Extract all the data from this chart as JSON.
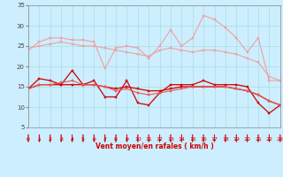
{
  "background_color": "#cceeff",
  "grid_color": "#aadddd",
  "xlabel": "Vent moyen/en rafales ( km/h )",
  "xlim": [
    0,
    23
  ],
  "ylim": [
    5,
    35
  ],
  "yticks": [
    5,
    10,
    15,
    20,
    25,
    30,
    35
  ],
  "xticks": [
    0,
    1,
    2,
    3,
    4,
    5,
    6,
    7,
    8,
    9,
    10,
    11,
    12,
    13,
    14,
    15,
    16,
    17,
    18,
    19,
    20,
    21,
    22,
    23
  ],
  "x": [
    0,
    1,
    2,
    3,
    4,
    5,
    6,
    7,
    8,
    9,
    10,
    11,
    12,
    13,
    14,
    15,
    16,
    17,
    18,
    19,
    20,
    21,
    22,
    23
  ],
  "line1_y": [
    24.0,
    26.0,
    27.0,
    27.0,
    26.5,
    26.5,
    26.0,
    19.5,
    24.5,
    25.0,
    24.5,
    22.0,
    25.0,
    29.0,
    25.0,
    27.0,
    32.5,
    31.5,
    29.5,
    27.0,
    23.5,
    27.0,
    16.5,
    16.5
  ],
  "line2_y": [
    24.5,
    25.0,
    25.5,
    26.0,
    25.5,
    25.0,
    25.0,
    24.5,
    24.0,
    23.5,
    23.0,
    22.5,
    24.0,
    24.5,
    24.0,
    23.5,
    24.0,
    24.0,
    23.5,
    23.0,
    22.0,
    21.0,
    17.5,
    16.5
  ],
  "line3_y": [
    14.5,
    17.0,
    16.5,
    15.5,
    19.0,
    15.5,
    16.5,
    12.5,
    12.5,
    16.5,
    11.0,
    10.5,
    13.5,
    15.5,
    15.5,
    15.5,
    16.5,
    15.5,
    15.5,
    15.5,
    15.0,
    11.0,
    8.5,
    10.5
  ],
  "line4_y": [
    14.5,
    15.5,
    15.5,
    15.5,
    15.5,
    15.5,
    15.5,
    15.0,
    14.5,
    15.0,
    14.5,
    14.0,
    14.0,
    14.5,
    15.0,
    15.0,
    15.0,
    15.0,
    15.0,
    14.5,
    14.0,
    13.0,
    11.5,
    10.5
  ],
  "line5_y": [
    14.5,
    15.5,
    15.5,
    16.0,
    16.5,
    15.5,
    15.5,
    15.0,
    14.0,
    14.5,
    13.5,
    13.0,
    13.5,
    14.0,
    14.5,
    15.0,
    15.0,
    15.0,
    15.0,
    14.5,
    14.0,
    13.0,
    11.5,
    10.5
  ],
  "line_light_pink": "#f0a0a0",
  "line_dark_red": "#cc0000",
  "line_medium_red": "#ee5555",
  "arrow_color": "#cc0000",
  "spine_color": "#888888"
}
